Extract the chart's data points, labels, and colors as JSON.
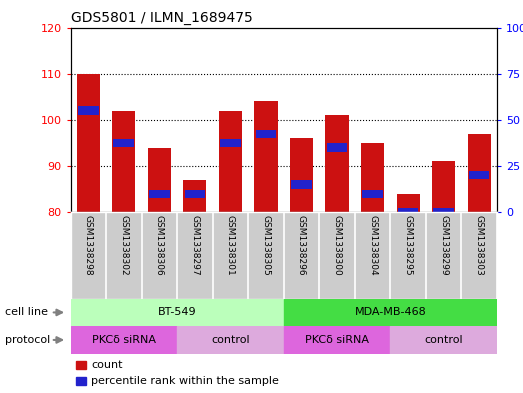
{
  "title": "GDS5801 / ILMN_1689475",
  "samples": [
    "GSM1338298",
    "GSM1338302",
    "GSM1338306",
    "GSM1338297",
    "GSM1338301",
    "GSM1338305",
    "GSM1338296",
    "GSM1338300",
    "GSM1338304",
    "GSM1338295",
    "GSM1338299",
    "GSM1338303"
  ],
  "bar_values": [
    110,
    102,
    94,
    87,
    102,
    104,
    96,
    101,
    95,
    84,
    91,
    97
  ],
  "blue_values": [
    102,
    95,
    84,
    84,
    95,
    97,
    86,
    94,
    84,
    80,
    80,
    88
  ],
  "ylim_left": [
    80,
    120
  ],
  "ylim_right": [
    0,
    100
  ],
  "yticks_left": [
    80,
    90,
    100,
    110,
    120
  ],
  "yticks_right": [
    0,
    25,
    50,
    75,
    100
  ],
  "bar_color": "#cc1111",
  "blue_color": "#2222cc",
  "bg_color": "#ffffff",
  "sample_bg_color": "#cccccc",
  "cell_line_colors": [
    "#bbffbb",
    "#44dd44"
  ],
  "cell_line_labels": [
    "BT-549",
    "MDA-MB-468"
  ],
  "cell_line_splits": [
    6
  ],
  "prot_labels": [
    "PKCδ siRNA",
    "control",
    "PKCδ siRNA",
    "control"
  ],
  "prot_colors": [
    "#dd66dd",
    "#ddaadd",
    "#dd66dd",
    "#ddaadd"
  ],
  "prot_splits": [
    3,
    6,
    9
  ]
}
